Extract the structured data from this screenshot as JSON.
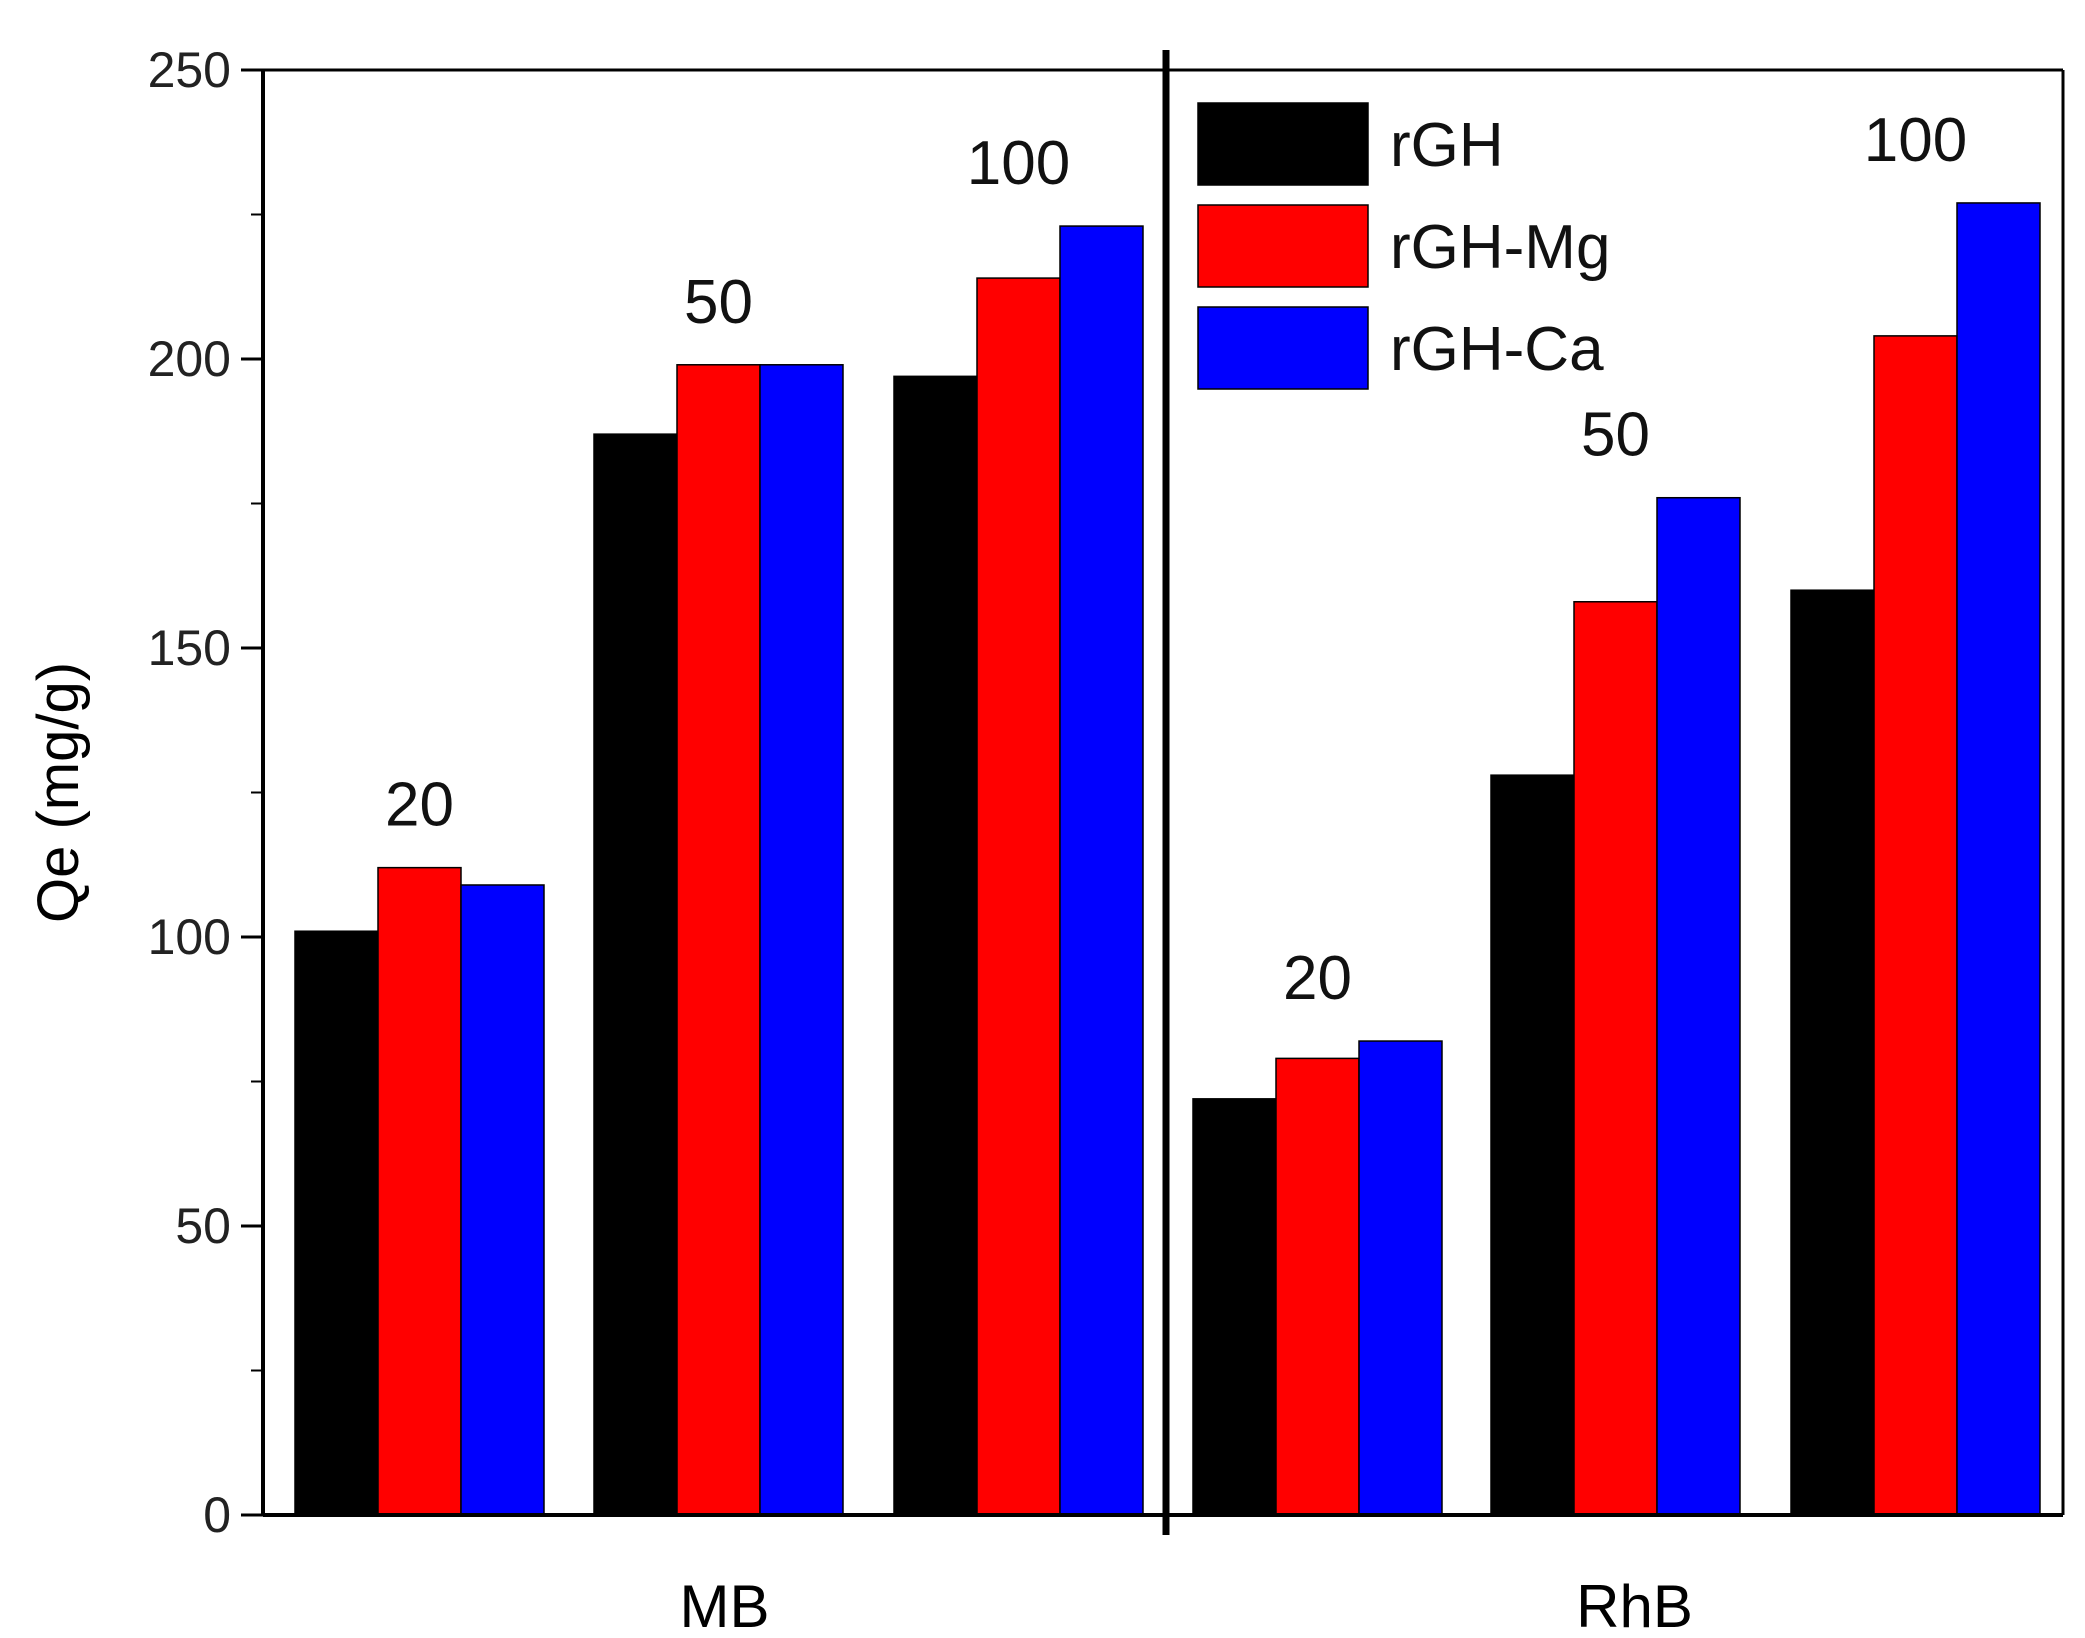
{
  "chart_data": {
    "type": "bar",
    "ylabel": "Qe (mg/g)",
    "xlabel": "",
    "ylim": [
      0,
      250
    ],
    "yticks": [
      0,
      50,
      100,
      150,
      200,
      250
    ],
    "groups": [
      {
        "name": "MB",
        "subgroups": [
          {
            "annotation": "20",
            "values": [
              101,
              112,
              109
            ]
          },
          {
            "annotation": "50",
            "values": [
              187,
              199,
              199
            ]
          },
          {
            "annotation": "100",
            "values": [
              197,
              214,
              223
            ]
          }
        ]
      },
      {
        "name": "RhB",
        "subgroups": [
          {
            "annotation": "20",
            "values": [
              72,
              79,
              82
            ]
          },
          {
            "annotation": "50",
            "values": [
              128,
              158,
              176
            ]
          },
          {
            "annotation": "100",
            "values": [
              160,
              204,
              227
            ]
          }
        ]
      }
    ],
    "series": [
      {
        "name": "rGH",
        "color": "#000000"
      },
      {
        "name": "rGH-Mg",
        "color": "#ff0000"
      },
      {
        "name": "rGH-Ca",
        "color": "#0000ff"
      }
    ],
    "legend_position": "top-right",
    "grid": false
  }
}
